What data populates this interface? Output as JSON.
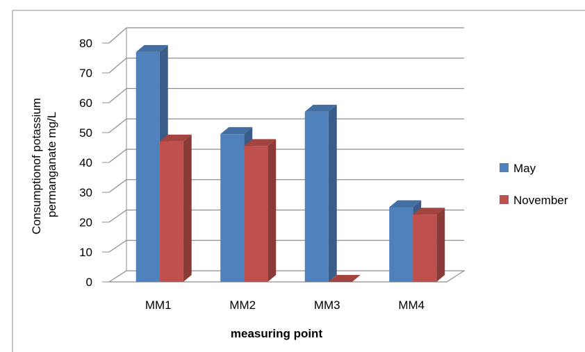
{
  "chart_data": {
    "type": "bar",
    "style": "3d-clustered-column",
    "categories": [
      "MM1",
      "MM2",
      "MM3",
      "MM4"
    ],
    "series": [
      {
        "name": "May",
        "values": [
          77,
          49.5,
          57,
          25
        ],
        "color": "#4F81BD"
      },
      {
        "name": "November",
        "values": [
          47,
          45.5,
          0,
          22.5
        ],
        "color": "#C0504D"
      }
    ],
    "title": "",
    "xlabel": "measuring point",
    "ylabel_lines": [
      "Consumptionof potassium",
      "permanganate mg/L"
    ],
    "ylim": [
      0,
      80
    ],
    "yticks": [
      "0",
      "10",
      "20",
      "30",
      "40",
      "50",
      "60",
      "70",
      "80"
    ],
    "grid": true,
    "legend_position": "right"
  }
}
